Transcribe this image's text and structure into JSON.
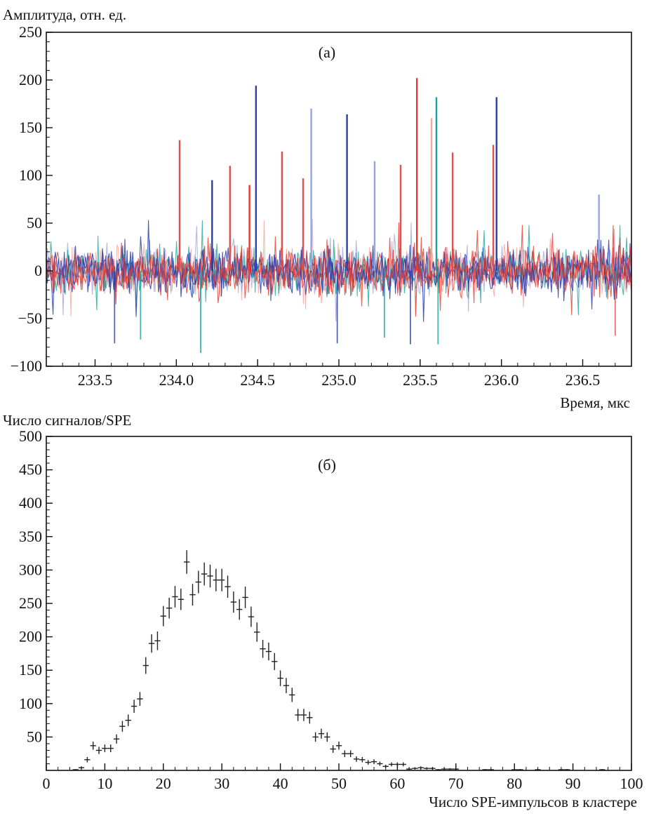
{
  "chart_data": [
    {
      "type": "line",
      "panel_label": "(а)",
      "ylabel": "Амплитуда, отн. ед.",
      "xlabel": "Время, мкс",
      "xlim": [
        233.2,
        236.8
      ],
      "ylim": [
        -100,
        250
      ],
      "xticks": [
        "233.5",
        "234.0",
        "234.5",
        "235.0",
        "235.5",
        "236.0",
        "236.5"
      ],
      "yticks": [
        "−100",
        "−50",
        "0",
        "50",
        "100",
        "150",
        "200",
        "250"
      ],
      "grid": false,
      "legend": "none",
      "series_colors": [
        "#2a3fa8",
        "#e83a2e",
        "#14a39a",
        "#9aa4d8",
        "#f2a7a2"
      ],
      "noise_band": [
        -30,
        30
      ],
      "peaks": [
        {
          "x": 234.02,
          "y": 137,
          "color": "#e05050"
        },
        {
          "x": 234.22,
          "y": 95,
          "color": "#2a3fa8"
        },
        {
          "x": 234.33,
          "y": 110,
          "color": "#e05050"
        },
        {
          "x": 234.45,
          "y": 90,
          "color": "#e83a2e"
        },
        {
          "x": 234.49,
          "y": 194,
          "color": "#2a3fa8"
        },
        {
          "x": 234.65,
          "y": 125,
          "color": "#e05050"
        },
        {
          "x": 234.78,
          "y": 97,
          "color": "#e05050"
        },
        {
          "x": 234.83,
          "y": 170,
          "color": "#9aa4d8"
        },
        {
          "x": 235.05,
          "y": 164,
          "color": "#2a3fa8"
        },
        {
          "x": 235.22,
          "y": 115,
          "color": "#9aa4d8"
        },
        {
          "x": 235.38,
          "y": 111,
          "color": "#e05050"
        },
        {
          "x": 235.48,
          "y": 202,
          "color": "#e83a2e"
        },
        {
          "x": 235.57,
          "y": 160,
          "color": "#f2a7a2"
        },
        {
          "x": 235.6,
          "y": 182,
          "color": "#14a39a"
        },
        {
          "x": 235.7,
          "y": 124,
          "color": "#e05050"
        },
        {
          "x": 235.95,
          "y": 132,
          "color": "#e05050"
        },
        {
          "x": 235.97,
          "y": 182,
          "color": "#2a3fa8"
        },
        {
          "x": 236.6,
          "y": 80,
          "color": "#9aa4d8"
        }
      ],
      "dips": [
        {
          "x": 233.62,
          "y": -76,
          "color": "#2a3fa8"
        },
        {
          "x": 233.78,
          "y": -72,
          "color": "#14a39a"
        },
        {
          "x": 234.15,
          "y": -86,
          "color": "#14a39a"
        },
        {
          "x": 234.99,
          "y": -76,
          "color": "#2a3fa8"
        },
        {
          "x": 235.28,
          "y": -70,
          "color": "#14a39a"
        },
        {
          "x": 235.44,
          "y": -77,
          "color": "#2a3fa8"
        },
        {
          "x": 235.61,
          "y": -77,
          "color": "#14a39a"
        },
        {
          "x": 236.7,
          "y": -68,
          "color": "#e05050"
        }
      ]
    },
    {
      "type": "scatter",
      "panel_label": "(б)",
      "ylabel": "Число сигналов/SPE",
      "xlabel": "Число SPE-импульсов в кластере",
      "xlim": [
        0,
        100
      ],
      "ylim": [
        0,
        500
      ],
      "xticks": [
        "0",
        "10",
        "20",
        "30",
        "40",
        "50",
        "60",
        "70",
        "80",
        "90",
        "100"
      ],
      "yticks": [
        "50",
        "100",
        "150",
        "200",
        "250",
        "300",
        "350",
        "400",
        "450",
        "500"
      ],
      "grid": false,
      "legend": "none",
      "error_bars": true,
      "points": [
        [
          5,
          1
        ],
        [
          6,
          4
        ],
        [
          7,
          16
        ],
        [
          8,
          37
        ],
        [
          9,
          30
        ],
        [
          10,
          33
        ],
        [
          11,
          33
        ],
        [
          12,
          47
        ],
        [
          13,
          66
        ],
        [
          14,
          75
        ],
        [
          15,
          96
        ],
        [
          16,
          107
        ],
        [
          17,
          157
        ],
        [
          18,
          190
        ],
        [
          19,
          194
        ],
        [
          20,
          231
        ],
        [
          21,
          243
        ],
        [
          22,
          260
        ],
        [
          23,
          256
        ],
        [
          24,
          312
        ],
        [
          25,
          263
        ],
        [
          26,
          282
        ],
        [
          27,
          294
        ],
        [
          28,
          291
        ],
        [
          29,
          285
        ],
        [
          30,
          285
        ],
        [
          31,
          275
        ],
        [
          32,
          252
        ],
        [
          33,
          241
        ],
        [
          34,
          259
        ],
        [
          35,
          230
        ],
        [
          36,
          207
        ],
        [
          37,
          182
        ],
        [
          38,
          178
        ],
        [
          39,
          163
        ],
        [
          40,
          138
        ],
        [
          41,
          127
        ],
        [
          42,
          113
        ],
        [
          43,
          83
        ],
        [
          44,
          83
        ],
        [
          45,
          79
        ],
        [
          46,
          50
        ],
        [
          47,
          55
        ],
        [
          48,
          50
        ],
        [
          49,
          32
        ],
        [
          50,
          37
        ],
        [
          51,
          25
        ],
        [
          52,
          25
        ],
        [
          53,
          17
        ],
        [
          54,
          16
        ],
        [
          55,
          12
        ],
        [
          56,
          13
        ],
        [
          57,
          10
        ],
        [
          58,
          6
        ],
        [
          59,
          9
        ],
        [
          60,
          9
        ],
        [
          61,
          9
        ],
        [
          62,
          2
        ],
        [
          63,
          3
        ],
        [
          64,
          4
        ],
        [
          65,
          3
        ],
        [
          66,
          3
        ],
        [
          67,
          1
        ],
        [
          68,
          2
        ],
        [
          69,
          2
        ],
        [
          70,
          2
        ],
        [
          75,
          1
        ],
        [
          76,
          1
        ],
        [
          80,
          1
        ],
        [
          81,
          1
        ],
        [
          84,
          1
        ],
        [
          88,
          1
        ],
        [
          89,
          1
        ],
        [
          95,
          1
        ]
      ]
    }
  ]
}
